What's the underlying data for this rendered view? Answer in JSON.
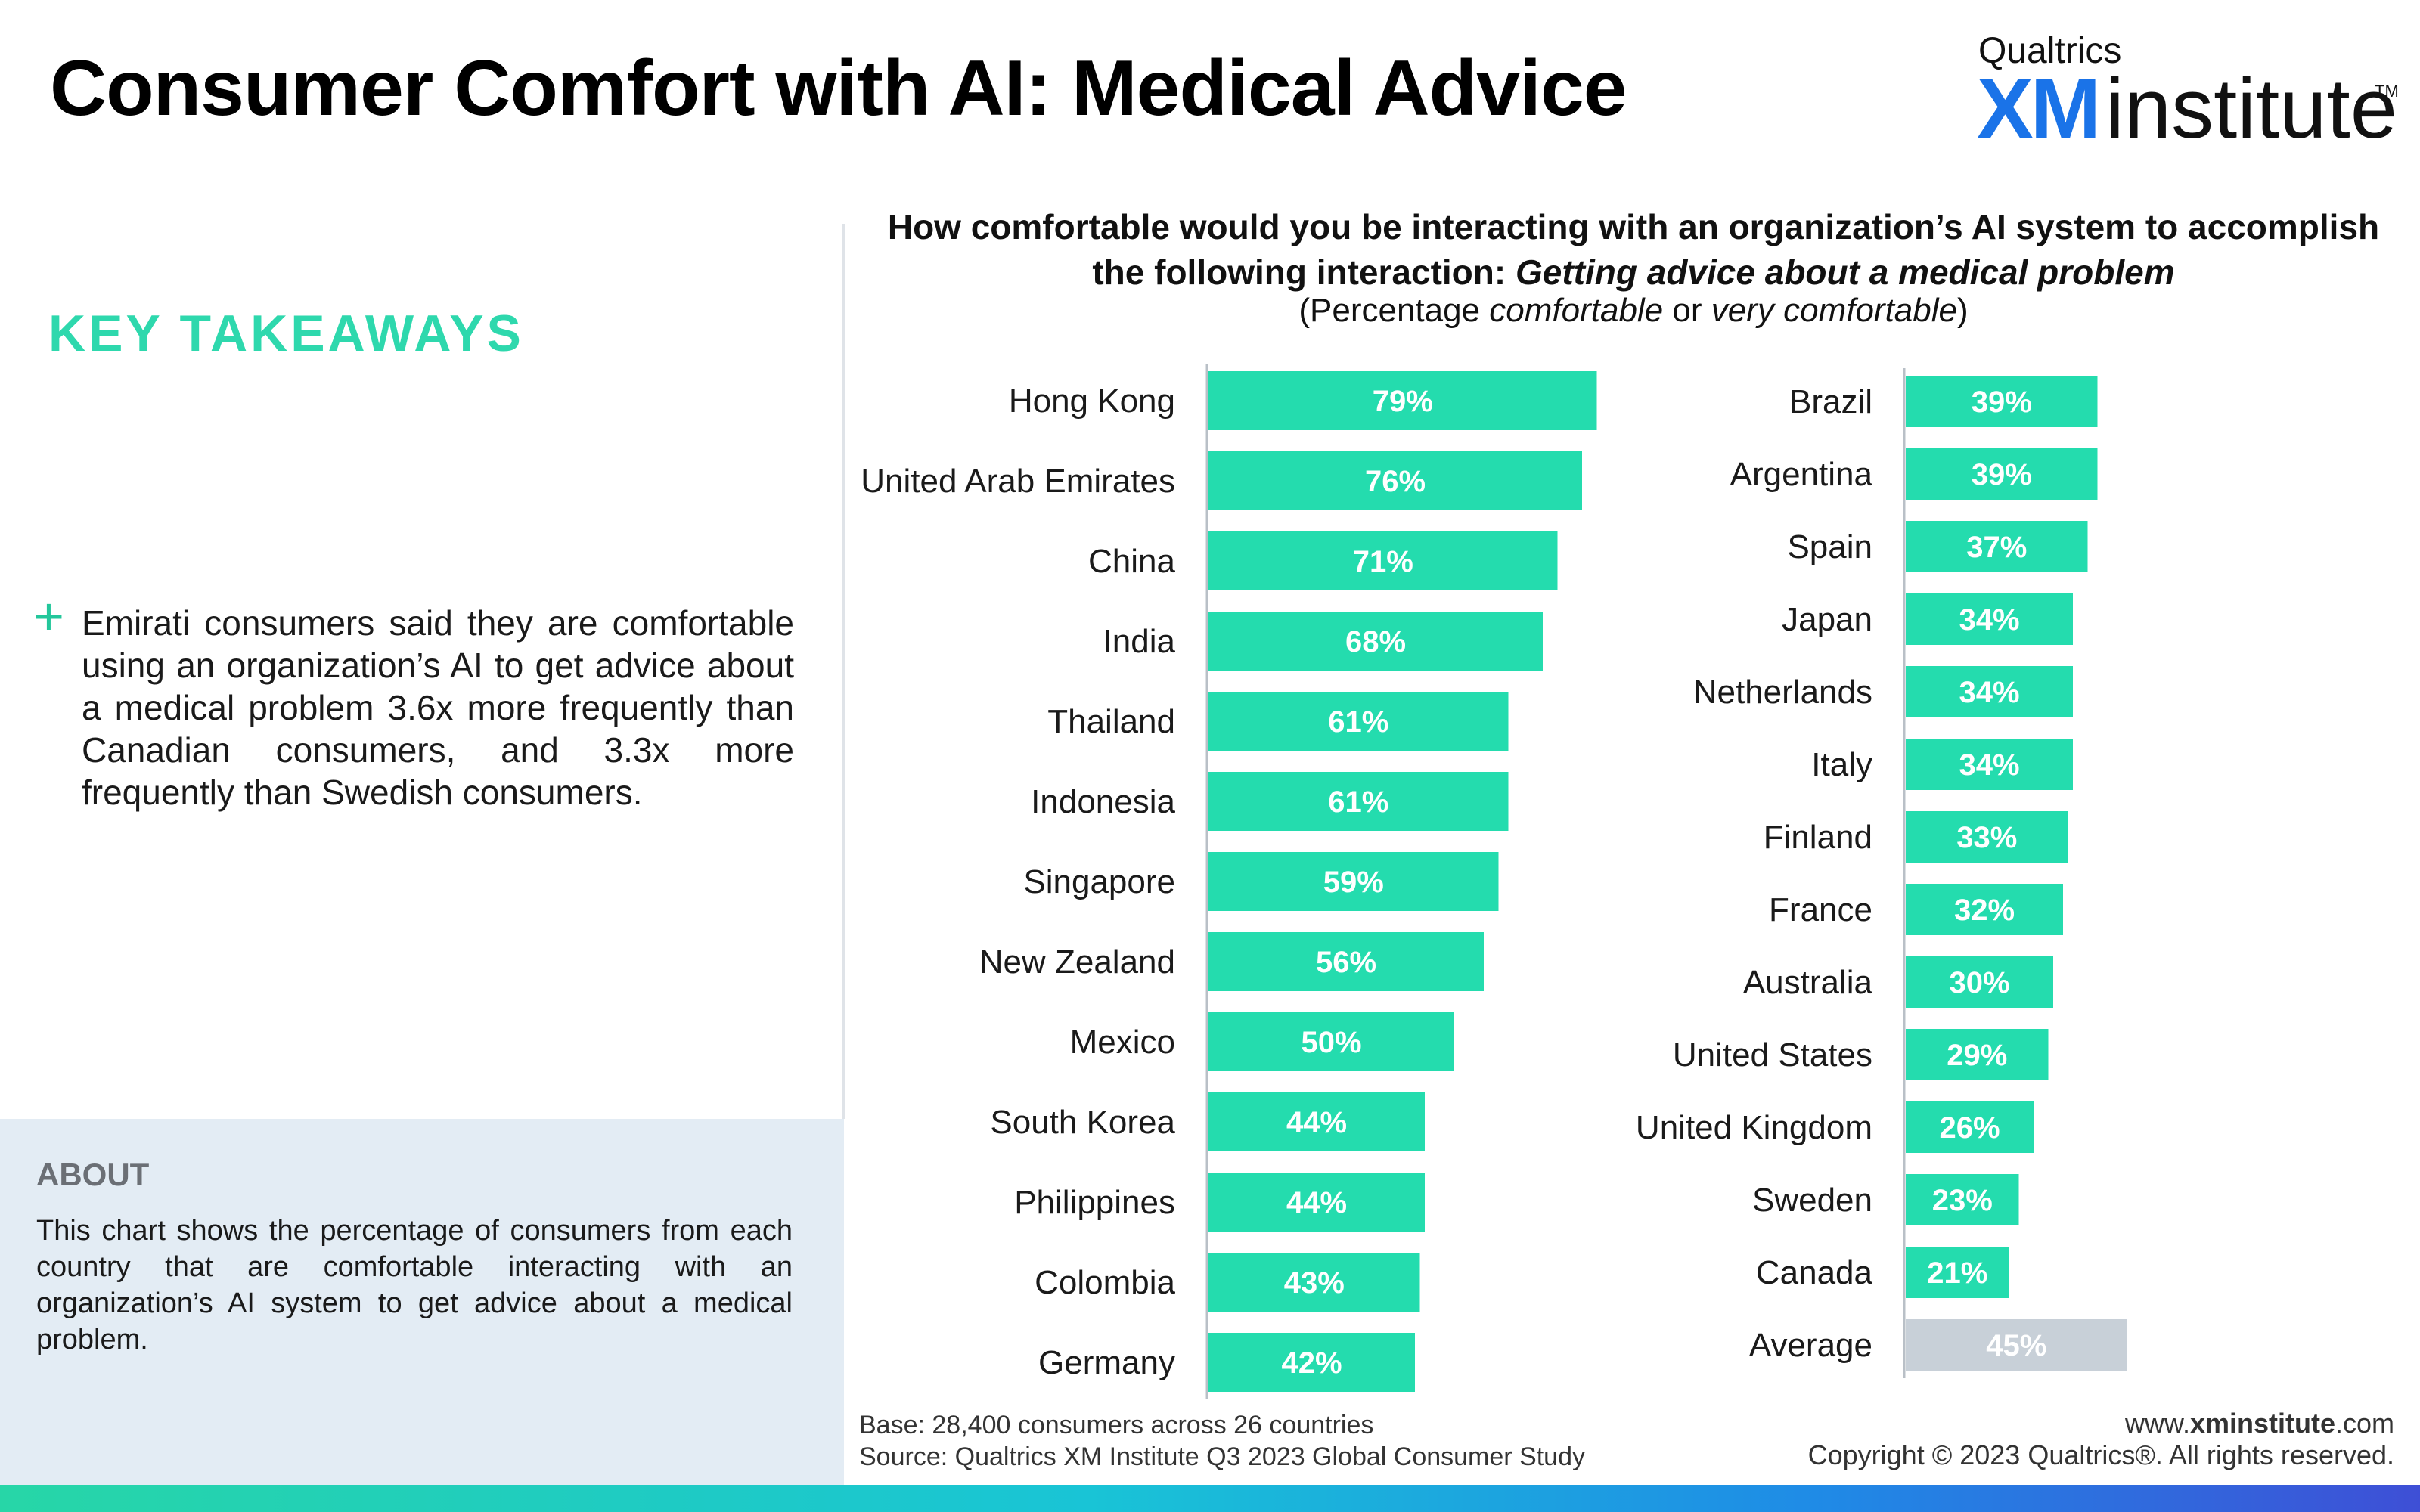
{
  "page": {
    "title": "Consumer Comfort with AI: Medical Advice"
  },
  "brand": {
    "name": "Qualtrics",
    "xm": "XM",
    "institute": "institute",
    "tm": "TM"
  },
  "takeaways": {
    "heading": "KEY TAKEAWAYS",
    "bullet": "+",
    "text": "Emirati consumers said they are comfortable using an organization’s AI to get advice about a medical problem 3.6x more frequently than Canadian consumers, and 3.3x more frequently than Swedish consumers."
  },
  "about": {
    "heading": "ABOUT",
    "text": "This chart shows the percentage of consumers from each country that are comfortable interacting with an organization’s AI system to get advice about a medical problem."
  },
  "chart": {
    "question_main": "How comfortable would you be interacting with an organization’s AI system to accomplish the following interaction:",
    "question_emphasis": "Getting advice about a medical problem",
    "subtitle_open": "(Percentage ",
    "subtitle_em1": "comfortable",
    "subtitle_mid": " or ",
    "subtitle_em2": "very comfortable",
    "subtitle_close": ")"
  },
  "chart_data": {
    "type": "bar",
    "orientation": "horizontal",
    "title": "How comfortable would you be interacting with an organization’s AI system to accomplish the following interaction: Getting advice about a medical problem",
    "subtitle": "(Percentage comfortable or very comfortable)",
    "unit": "%",
    "xlim": [
      0,
      100
    ],
    "grid": false,
    "legend": "none",
    "colors": {
      "bar": "#24dcae",
      "average_bar": "#c8d0d8",
      "label": "#ffffff"
    },
    "panels": [
      {
        "categories": [
          "Hong Kong",
          "United Arab Emirates",
          "China",
          "India",
          "Thailand",
          "Indonesia",
          "Singapore",
          "New Zealand",
          "Mexico",
          "South Korea",
          "Philippines",
          "Colombia",
          "Germany"
        ],
        "values": [
          79,
          76,
          71,
          68,
          61,
          61,
          59,
          56,
          50,
          44,
          44,
          43,
          42
        ]
      },
      {
        "categories": [
          "Brazil",
          "Argentina",
          "Spain",
          "Japan",
          "Netherlands",
          "Italy",
          "Finland",
          "France",
          "Australia",
          "United States",
          "United Kingdom",
          "Sweden",
          "Canada",
          "Average"
        ],
        "values": [
          39,
          39,
          37,
          34,
          34,
          34,
          33,
          32,
          30,
          29,
          26,
          23,
          21,
          45
        ],
        "highlight": "Average"
      }
    ]
  },
  "footer": {
    "base": "Base: 28,400 consumers across 26 countries",
    "source": "Source: Qualtrics XM Institute Q3 2023 Global Consumer Study",
    "url_prefix": "www.",
    "url_bold": "xminstitute",
    "url_suffix": ".com",
    "copyright": "Copyright © 2023 Qualtrics®. All rights reserved."
  }
}
